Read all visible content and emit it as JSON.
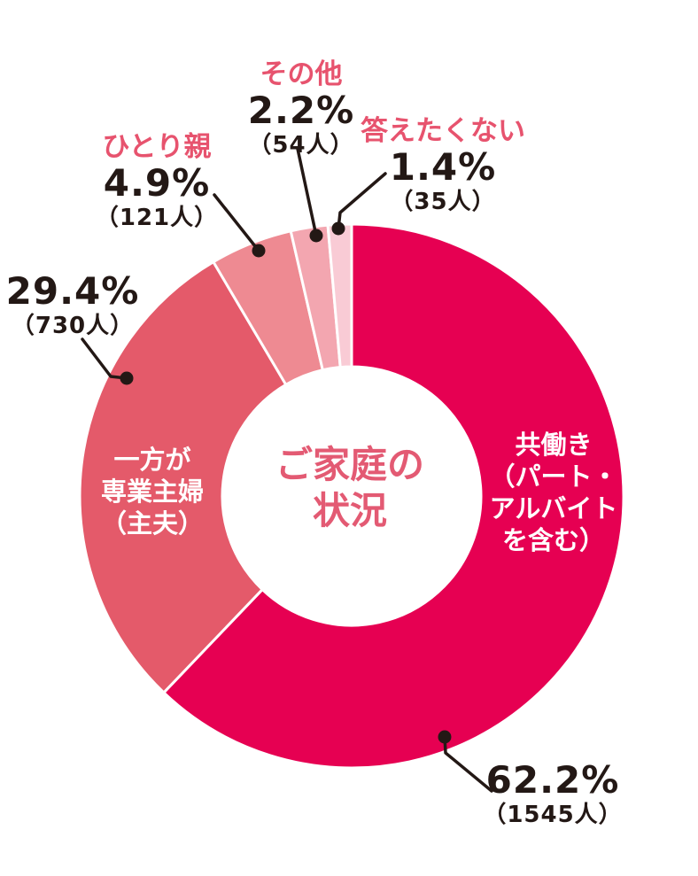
{
  "chart_data": {
    "type": "pie",
    "donut": true,
    "title": "ご家庭の状況",
    "start_angle_deg": 0,
    "direction": "clockwise",
    "legend_position": "none",
    "segments": [
      {
        "key": "dual-income",
        "label": "共働き（パート・アルバイトを含む）",
        "value": 62.2,
        "count": 1545,
        "color": "#e60052"
      },
      {
        "key": "one-housewife",
        "label": "一方が専業主婦（主夫）",
        "value": 29.4,
        "count": 730,
        "color": "#e45a6a"
      },
      {
        "key": "single-parent",
        "label": "ひとり親",
        "value": 4.9,
        "count": 121,
        "color": "#ee8a92"
      },
      {
        "key": "other",
        "label": "その他",
        "value": 2.2,
        "count": 54,
        "color": "#f3a6b0"
      },
      {
        "key": "refuse",
        "label": "答えたくない",
        "value": 1.4,
        "count": 35,
        "color": "#f9cbd5"
      }
    ]
  },
  "labels": {
    "other": {
      "name": "その他",
      "pct": "2.2%",
      "count": "（54人）"
    },
    "refuse": {
      "name": "答えたくない",
      "pct": "1.4%",
      "count": "（35人）"
    },
    "single_parent": {
      "name": "ひとり親",
      "pct": "4.9%",
      "count": "（121人）"
    },
    "housewife": {
      "pct": "29.4%",
      "count": "（730人）"
    },
    "dual_income": {
      "pct": "62.2%",
      "count": "（1545人）"
    },
    "inside_dual": {
      "lines": [
        "共働き",
        "（パート・",
        "アルバイト",
        "を含む）"
      ]
    },
    "inside_housewife": {
      "lines": [
        "一方が",
        "専業主婦",
        "（主夫）"
      ]
    },
    "center": {
      "lines": [
        "ご家庭の",
        "状況"
      ]
    }
  },
  "colors": {
    "background": "#ffffff",
    "label_pink": "#e7536e",
    "center_pink": "#e35a73",
    "text_black": "#231815",
    "leader_line": "#231815",
    "segment_gap": "#ffffff"
  }
}
